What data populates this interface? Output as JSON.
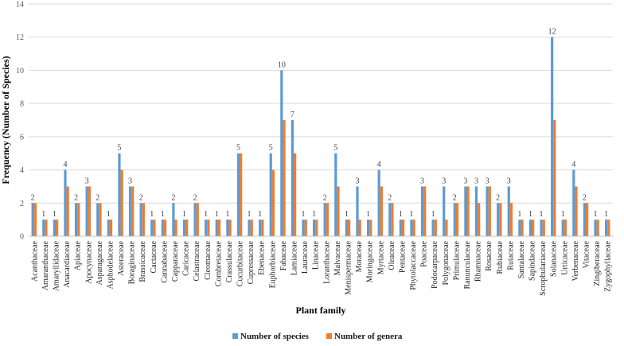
{
  "chart_data": {
    "type": "bar",
    "title": "",
    "xlabel": "Plant family",
    "ylabel": "Frequency (Number of Species)",
    "ylim": [
      0,
      14
    ],
    "yticks": [
      0,
      2,
      4,
      6,
      8,
      10,
      12,
      14
    ],
    "grid": true,
    "legend_position": "bottom",
    "categories": [
      "Acanthaceae",
      "Amaranthaceae",
      "Amaryllidaceae",
      "Anacardiaceae",
      "Apiaceae",
      "Apocynaceae",
      "Asparagaceae",
      "Asphodelaceae",
      "Asteraceae",
      "Boraginaceae",
      "Brassicaceae",
      "Cactaceae",
      "Cannabaceae",
      "Capparaceae",
      "Caricaceae",
      "Celastraceae",
      "Cleomaceae",
      "Combretaceae",
      "Crassulaceae",
      "Cucurbitaceae",
      "Cupressaceae",
      "Ebenaceae",
      "Euphorbiaceae",
      "Fabaceae",
      "Lamiaceae",
      "Lauraceae",
      "Linaceae",
      "Loranthaceae",
      "Malvaceae",
      "Menispermaceae",
      "Moraceae",
      "Moringaceae",
      "Myrtaceae",
      "Oleaceae",
      "Pentaceae",
      "Phytolaccaceae",
      "Poaceae",
      "Podocarpaceae",
      "Polygonaceae",
      "Primulaceae",
      "Ranunculaceae",
      "Rhamnaceae",
      "Rosaceae",
      "Rubiaceae",
      "Rutaceae",
      "Santalaceae",
      "Sapindaceae",
      "Scrophulariaceae",
      "Solanaceae",
      "Urticaceae",
      "Verbenaceae",
      "Vitaceae",
      "Zingiberaceae",
      "Zygophyllaceae"
    ],
    "series": [
      {
        "name": "Number of species",
        "color": "#5b9bd5",
        "values": [
          2,
          1,
          1,
          4,
          2,
          3,
          2,
          1,
          5,
          3,
          2,
          1,
          1,
          2,
          1,
          2,
          1,
          1,
          1,
          5,
          1,
          1,
          5,
          10,
          7,
          1,
          1,
          2,
          5,
          1,
          3,
          1,
          4,
          2,
          1,
          1,
          3,
          1,
          3,
          2,
          3,
          3,
          3,
          2,
          3,
          1,
          1,
          1,
          12,
          1,
          4,
          2,
          1,
          1
        ]
      },
      {
        "name": "Number of genera",
        "color": "#ed7d31",
        "values": [
          2,
          1,
          1,
          3,
          2,
          3,
          2,
          1,
          4,
          3,
          2,
          1,
          1,
          1,
          1,
          2,
          1,
          1,
          1,
          5,
          1,
          1,
          4,
          7,
          5,
          1,
          1,
          2,
          3,
          1,
          1,
          1,
          3,
          2,
          1,
          1,
          3,
          1,
          1,
          2,
          3,
          2,
          3,
          2,
          2,
          1,
          1,
          1,
          7,
          1,
          3,
          2,
          1,
          1
        ]
      }
    ],
    "data_labels": [
      2,
      1,
      1,
      4,
      2,
      3,
      2,
      1,
      5,
      3,
      2,
      1,
      1,
      2,
      1,
      2,
      1,
      1,
      1,
      5,
      1,
      1,
      5,
      10,
      7,
      1,
      1,
      2,
      5,
      1,
      3,
      1,
      4,
      2,
      1,
      1,
      3,
      1,
      3,
      2,
      3,
      3,
      3,
      2,
      3,
      1,
      1,
      1,
      12,
      1,
      4,
      2,
      1,
      1
    ]
  }
}
